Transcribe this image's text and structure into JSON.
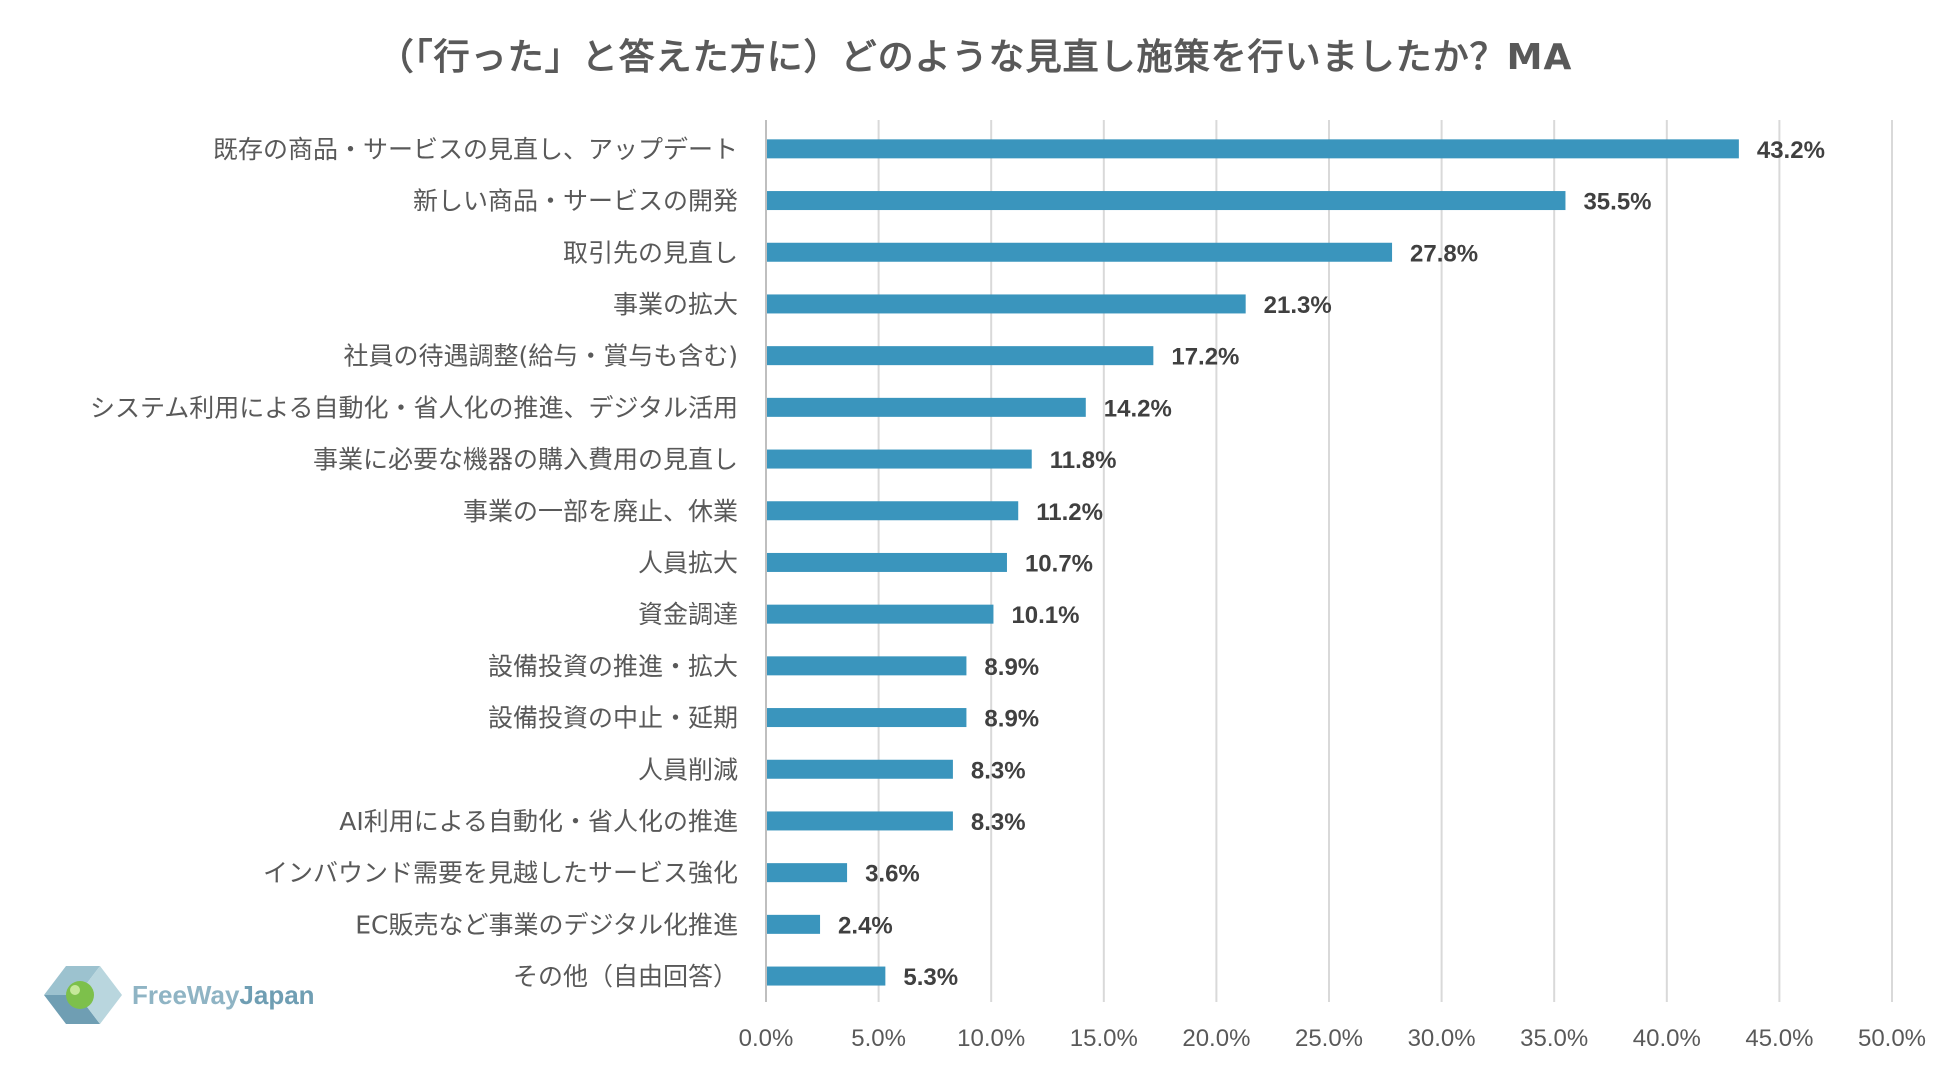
{
  "chart_data": {
    "type": "bar",
    "orientation": "horizontal",
    "title": "（「行った」と答えた方に）どのような見直し施策を行いましたか？MA",
    "categories": [
      "既存の商品・サービスの見直し、アップデート",
      "新しい商品・サービスの開発",
      "取引先の見直し",
      "事業の拡大",
      "社員の待遇調整(給与・賞与も含む)",
      "システム利用による自動化・省人化の推進、デジタル活用",
      "事業に必要な機器の購入費用の見直し",
      "事業の一部を廃止、休業",
      "人員拡大",
      "資金調達",
      "設備投資の推進・拡大",
      "設備投資の中止・延期",
      "人員削減",
      "AI利用による自動化・省人化の推進",
      "インバウンド需要を見越したサービス強化",
      "EC販売など事業のデジタル化推進",
      "その他（自由回答）"
    ],
    "values": [
      43.2,
      35.5,
      27.8,
      21.3,
      17.2,
      14.2,
      11.8,
      11.2,
      10.7,
      10.1,
      8.9,
      8.9,
      8.3,
      8.3,
      3.6,
      2.4,
      5.3
    ],
    "value_labels": [
      "43.2%",
      "35.5%",
      "27.8%",
      "21.3%",
      "17.2%",
      "14.2%",
      "11.8%",
      "11.2%",
      "10.7%",
      "10.1%",
      "8.9%",
      "8.9%",
      "8.3%",
      "8.3%",
      "3.6%",
      "2.4%",
      "5.3%"
    ],
    "xlim": [
      0,
      50
    ],
    "x_ticks": [
      "0.0%",
      "5.0%",
      "10.0%",
      "15.0%",
      "20.0%",
      "25.0%",
      "30.0%",
      "35.0%",
      "40.0%",
      "45.0%",
      "50.0%"
    ],
    "grid": "vertical",
    "bar_color": "#3a95bd",
    "grid_color": "#d9d9d9"
  },
  "logo": {
    "text_part1": "FreeWay",
    "text_part2": "Japan"
  }
}
